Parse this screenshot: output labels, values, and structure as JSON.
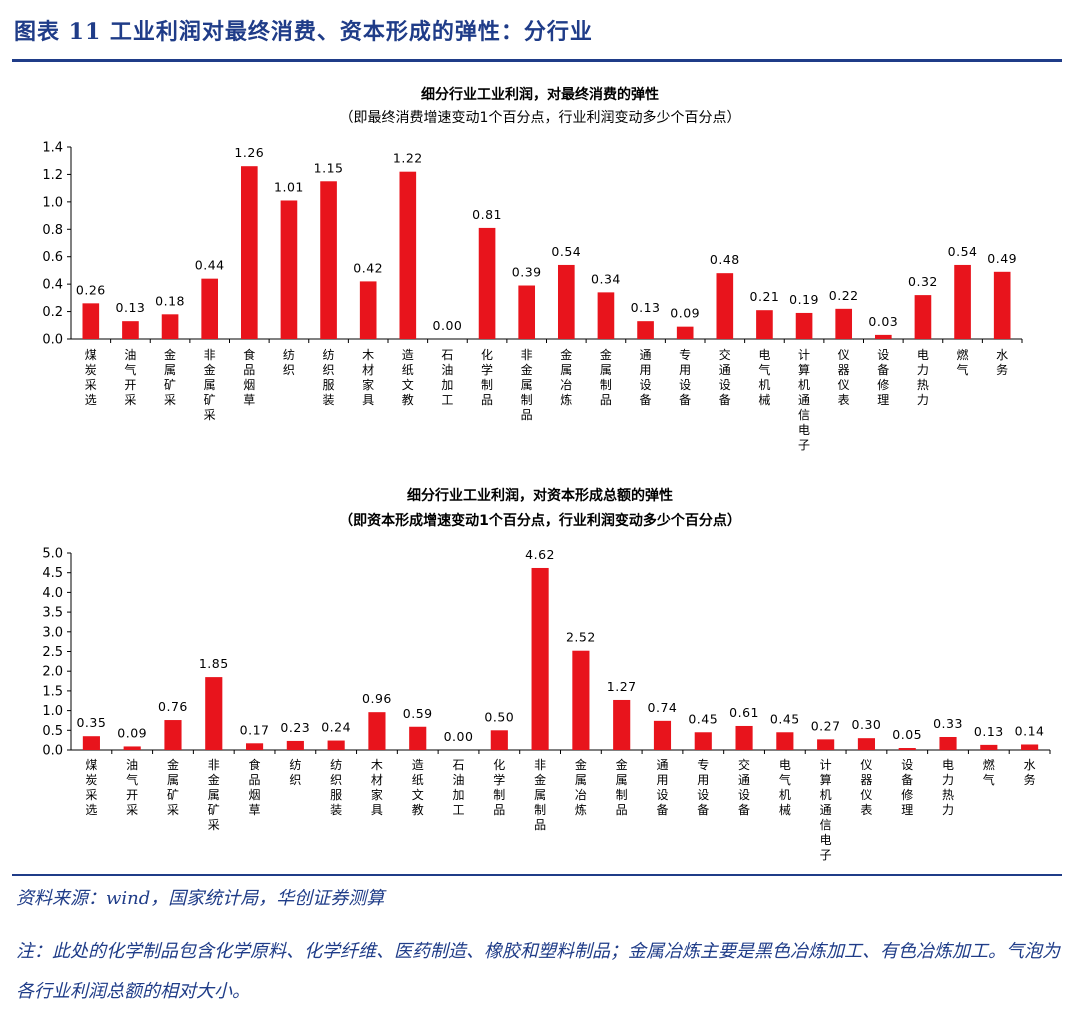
{
  "figure_title": "图表 11    工业利润对最终消费、资本形成的弹性：分行业",
  "source": "资料来源：wind，国家统计局，华创证券测算",
  "note": "注：此处的化学制品包含化学原料、化学纤维、医药制造、橡胶和塑料制品；金属冶炼主要是黑色冶炼加工、有色冶炼加工。气泡为各行业利润总额的相对大小。",
  "colors": {
    "bar": "#e8141c",
    "rule": "#1f3c88",
    "axis": "#000000"
  },
  "chart_data": [
    {
      "type": "bar",
      "title": "细分行业工业利润，对最终消费的弹性",
      "subtitle": "（即最终消费增速变动1个百分点，行业利润变动多少个百分点）",
      "ylim": [
        0,
        1.4
      ],
      "yticks": [
        "0.0",
        "0.2",
        "0.4",
        "0.6",
        "0.8",
        "1.0",
        "1.2",
        "1.4"
      ],
      "categories": [
        "煤炭采选",
        "油气开采",
        "金属矿采",
        "非金属矿采",
        "食品烟草",
        "纺织",
        "纺织服装",
        "木材家具",
        "造纸文教",
        "石油加工",
        "化学制品",
        "非金属制品",
        "金属冶炼",
        "金属制品",
        "通用设备",
        "专用设备",
        "交通设备",
        "电气机械",
        "计算机通信电子",
        "仪器仪表",
        "设备修理",
        "电力热力",
        "燃气",
        "水务"
      ],
      "values": [
        0.26,
        0.13,
        0.18,
        0.44,
        1.26,
        1.01,
        1.15,
        0.42,
        1.22,
        0.0,
        0.81,
        0.39,
        0.54,
        0.34,
        0.13,
        0.09,
        0.48,
        0.21,
        0.19,
        0.22,
        0.03,
        0.32,
        0.54,
        0.49
      ],
      "value_labels": [
        "0.26",
        "0.13",
        "0.18",
        "0.44",
        "1.26",
        "1.01",
        "1.15",
        "0.42",
        "1.22",
        "0.00",
        "0.81",
        "0.39",
        "0.54",
        "0.34",
        "0.13",
        "0.09",
        "0.48",
        "0.21",
        "0.19",
        "0.22",
        "0.03",
        "0.32",
        "0.54",
        "0.49"
      ],
      "grid": false,
      "legend": "none"
    },
    {
      "type": "bar",
      "title": "细分行业工业利润，对资本形成总额的弹性",
      "subtitle": "（即资本形成增速变动1个百分点，行业利润变动多少个百分点）",
      "ylim": [
        0,
        5.0
      ],
      "yticks": [
        "0.0",
        "0.5",
        "1.0",
        "1.5",
        "2.0",
        "2.5",
        "3.0",
        "3.5",
        "4.0",
        "4.5",
        "5.0"
      ],
      "categories": [
        "煤炭采选",
        "油气开采",
        "金属矿采",
        "非金属矿采",
        "食品烟草",
        "纺织",
        "纺织服装",
        "木材家具",
        "造纸文教",
        "石油加工",
        "化学制品",
        "非金属制品",
        "金属冶炼",
        "金属制品",
        "通用设备",
        "专用设备",
        "交通设备",
        "电气机械",
        "计算机通信电子",
        "仪器仪表",
        "设备修理",
        "电力热力",
        "燃气",
        "水务"
      ],
      "values": [
        0.35,
        0.09,
        0.76,
        1.85,
        0.17,
        0.23,
        0.24,
        0.96,
        0.59,
        0.0,
        0.5,
        4.62,
        2.52,
        1.27,
        0.74,
        0.45,
        0.61,
        0.45,
        0.27,
        0.3,
        0.05,
        0.33,
        0.13,
        0.14
      ],
      "value_labels": [
        "0.35",
        "0.09",
        "0.76",
        "1.85",
        "0.17",
        "0.23",
        "0.24",
        "0.96",
        "0.59",
        "0.00",
        "0.50",
        "4.62",
        "2.52",
        "1.27",
        "0.74",
        "0.45",
        "0.61",
        "0.45",
        "0.27",
        "0.30",
        "0.05",
        "0.33",
        "0.13",
        "0.14"
      ],
      "grid": false,
      "legend": "none"
    }
  ]
}
